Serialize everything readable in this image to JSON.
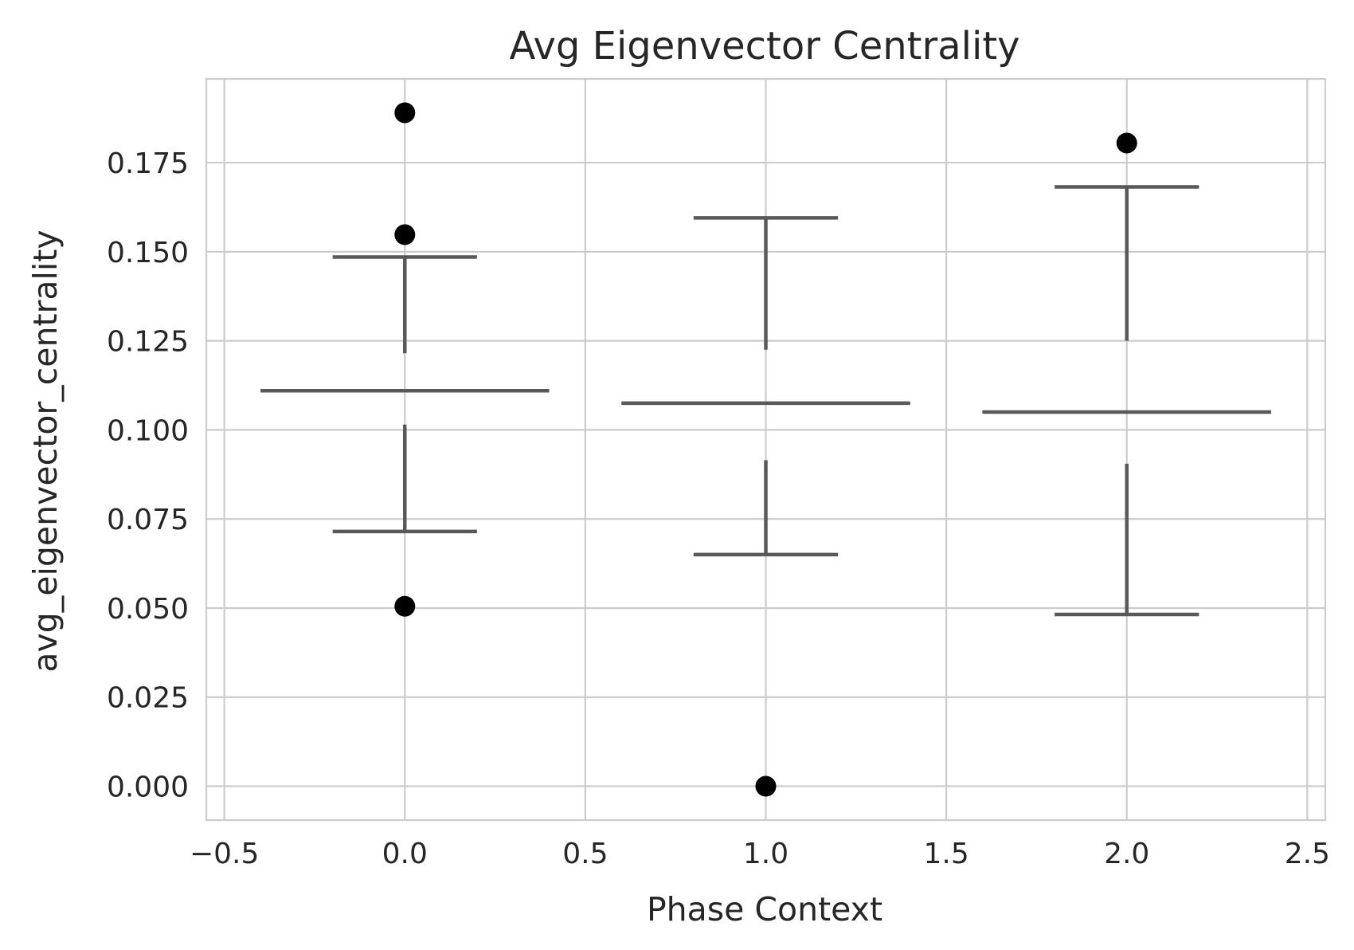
{
  "chart_data": {
    "type": "box",
    "title": "Avg Eigenvector Centrality",
    "xlabel": "Phase Context",
    "ylabel": "avg_eigenvector_centrality",
    "xlim": [
      -0.55,
      2.55
    ],
    "ylim": [
      -0.0095,
      0.1985
    ],
    "xticks": [
      -0.5,
      0.0,
      0.5,
      1.0,
      1.5,
      2.0,
      2.5
    ],
    "xtick_labels": [
      "−0.5",
      "0.0",
      "0.5",
      "1.0",
      "1.5",
      "2.0",
      "2.5"
    ],
    "yticks": [
      0.0,
      0.025,
      0.05,
      0.075,
      0.1,
      0.125,
      0.15,
      0.175
    ],
    "ytick_labels": [
      "0.000",
      "0.025",
      "0.050",
      "0.075",
      "0.100",
      "0.125",
      "0.150",
      "0.175"
    ],
    "grid": true,
    "boxes": [
      {
        "x": 0.0,
        "whisker_low": 0.0715,
        "q1": 0.1015,
        "median": 0.111,
        "q3": 0.1215,
        "whisker_high": 0.1485,
        "fliers": [
          0.189,
          0.1548,
          0.0505
        ]
      },
      {
        "x": 1.0,
        "whisker_low": 0.065,
        "q1": 0.0915,
        "median": 0.1075,
        "q3": 0.1225,
        "whisker_high": 0.1595,
        "fliers": [
          0.0
        ]
      },
      {
        "x": 2.0,
        "whisker_low": 0.0482,
        "q1": 0.0905,
        "median": 0.105,
        "q3": 0.125,
        "whisker_high": 0.1682,
        "fliers": [
          0.1805
        ]
      }
    ]
  }
}
